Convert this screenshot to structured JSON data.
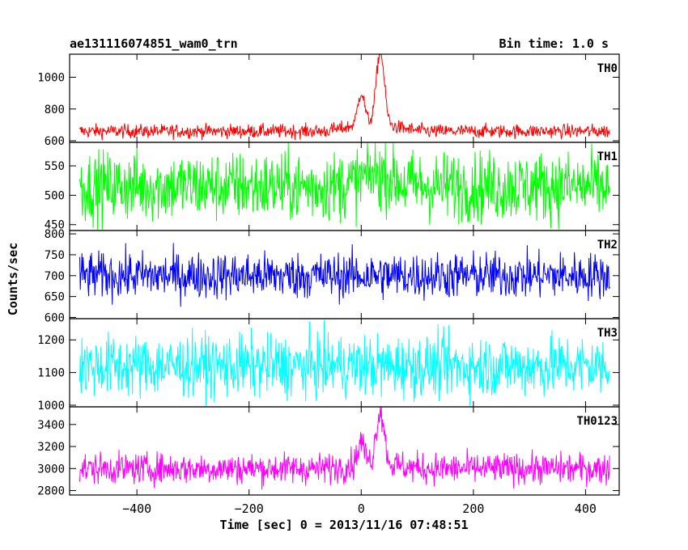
{
  "chart_data": {
    "type": "line",
    "title": "ae131116074851_wam0_trn",
    "bin_label": "Bin time: 1.0 s",
    "xlabel": "Time [sec] 0 = 2013/11/16 07:48:51",
    "ylabel": "Counts/sec",
    "xlim": [
      -520,
      460
    ],
    "x_ticks": [
      -400,
      -200,
      0,
      200,
      400
    ],
    "x_tick_labels": [
      "−400",
      "−200",
      "0",
      "200",
      "400"
    ],
    "panels": [
      {
        "name": "TH0",
        "color": "#ff0000",
        "ylim": [
          590,
          1145
        ],
        "y_ticks": [
          600,
          800,
          1000
        ],
        "y_tick_labels": [
          "600",
          "800",
          "1000"
        ],
        "baseline": 660,
        "noise": 22,
        "burst": [
          {
            "t": 0,
            "amp": 200,
            "w": 6
          },
          {
            "t": 34,
            "amp": 460,
            "w": 7
          }
        ]
      },
      {
        "name": "TH1",
        "color": "#00ff00",
        "ylim": [
          440,
          590
        ],
        "y_ticks": [
          450,
          500,
          550
        ],
        "y_tick_labels": [
          "450",
          "500",
          "550"
        ],
        "baseline": 515,
        "noise": 30,
        "burst": [
          {
            "t": 30,
            "amp": 18,
            "w": 25
          }
        ]
      },
      {
        "name": "TH2",
        "color": "#0000ff",
        "ylim": [
          597,
          808
        ],
        "y_ticks": [
          600,
          650,
          700,
          750,
          800
        ],
        "y_tick_labels": [
          "600",
          "650",
          "700",
          "750",
          "800"
        ],
        "baseline": 700,
        "noise": 28,
        "burst": []
      },
      {
        "name": "TH3",
        "color": "#00ffff",
        "ylim": [
          995,
          1265
        ],
        "y_ticks": [
          1000,
          1100,
          1200
        ],
        "y_tick_labels": [
          "1000",
          "1100",
          "1200"
        ],
        "baseline": 1120,
        "noise": 48,
        "burst": []
      },
      {
        "name": "TH0123",
        "color": "#ff00ff",
        "ylim": [
          2760,
          3560
        ],
        "y_ticks": [
          2800,
          3000,
          3200,
          3400
        ],
        "y_tick_labels": [
          "2800",
          "3000",
          "3200",
          "3400"
        ],
        "baseline": 3000,
        "noise": 70,
        "burst": [
          {
            "t": 0,
            "amp": 200,
            "w": 6
          },
          {
            "t": 34,
            "amp": 490,
            "w": 7
          }
        ]
      }
    ],
    "x_start": -502,
    "x_end": 443,
    "grid": false
  }
}
